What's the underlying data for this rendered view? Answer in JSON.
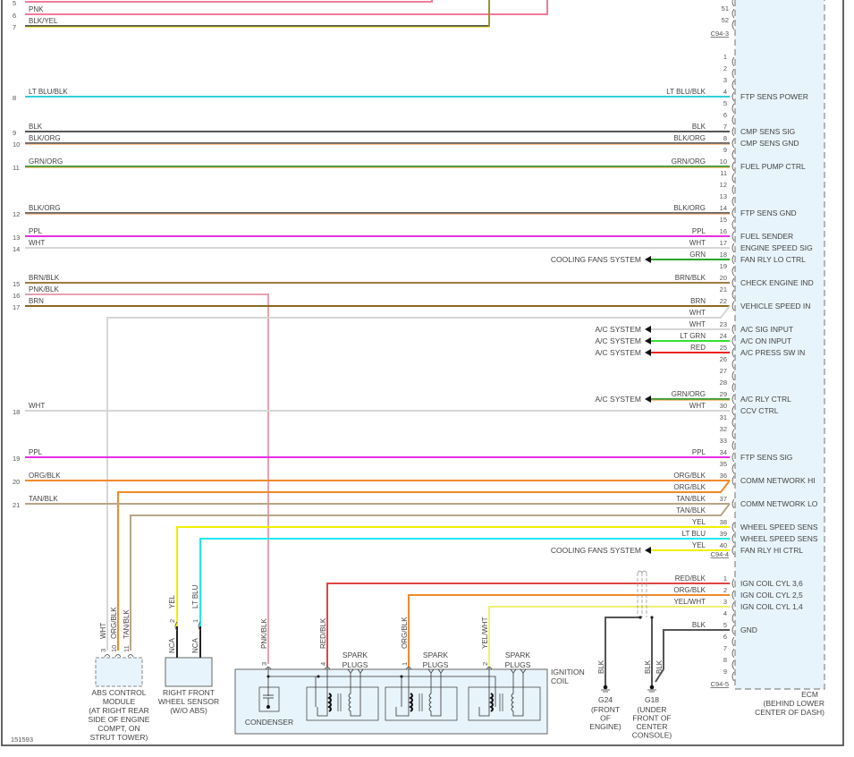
{
  "diagram_id": "151593",
  "wire_colors": {
    "PNK": [
      "#f07b9a",
      null
    ],
    "BLK/YEL": [
      "#555555",
      "#e8e000"
    ],
    "LT BLU/BLK": [
      "#2fd0d8",
      null
    ],
    "BLK": [
      "#555555",
      null
    ],
    "BLK/ORG": [
      "#666666",
      "#f5a060"
    ],
    "GRN/ORG": [
      "#3c9c3c",
      "#f0a040"
    ],
    "PPL": [
      "#e62ee6",
      null
    ],
    "WHT": [
      "#d6d6d6",
      null
    ],
    "GRN": [
      "#2aa52a",
      null
    ],
    "BRN/BLK": [
      "#9c7c3c",
      null
    ],
    "PNK/BLK": [
      "#e8a0b0",
      null
    ],
    "BRN": [
      "#8a6a1f",
      null
    ],
    "LT GRN": [
      "#33e033",
      null
    ],
    "RED": [
      "#ee2222",
      null
    ],
    "ORG/BLK": [
      "#f08a2a",
      null
    ],
    "TAN/BLK": [
      "#b8a588",
      null
    ],
    "YEL": [
      "#f0f000",
      null
    ],
    "LT BLU": [
      "#22e8f0",
      null
    ],
    "RED/BLK": [
      "#e04444",
      null
    ],
    "YEL/WHT": [
      "#f0f070",
      null
    ]
  },
  "top_wires": [
    {
      "circuit": "5",
      "label": "",
      "wire": "PNK"
    },
    {
      "circuit": "6",
      "label": "PNK",
      "wire": "PNK"
    },
    {
      "circuit": "7",
      "label": "BLK/YEL",
      "wire": "BLK/YEL"
    }
  ],
  "c94_3": {
    "name": "C94-3",
    "pins": [
      "51",
      "52"
    ]
  },
  "c94_4": {
    "name": "C94-4",
    "pins": [
      {
        "pin": "1"
      },
      {
        "pin": "2"
      },
      {
        "pin": "3"
      },
      {
        "pin": "4",
        "func": "FTP SENS POWER",
        "wire": "LT BLU/BLK",
        "circuit": "8"
      },
      {
        "pin": "5"
      },
      {
        "pin": "6"
      },
      {
        "pin": "7",
        "func": "CMP SENS SIG",
        "wire": "BLK",
        "circuit": "9"
      },
      {
        "pin": "8",
        "func": "CMP SENS GND",
        "wire": "BLK/ORG",
        "circuit": "10"
      },
      {
        "pin": "9"
      },
      {
        "pin": "10",
        "func": "FUEL PUMP CTRL",
        "wire": "GRN/ORG",
        "circuit": "11"
      },
      {
        "pin": "11"
      },
      {
        "pin": "12"
      },
      {
        "pin": "13"
      },
      {
        "pin": "14",
        "func": "FTP SENS GND",
        "wire": "BLK/ORG",
        "circuit": "12"
      },
      {
        "pin": "15"
      },
      {
        "pin": "16",
        "func": "FUEL SENDER",
        "wire": "PPL",
        "circuit": "13"
      },
      {
        "pin": "17",
        "func": "ENGINE SPEED SIG",
        "wire": "WHT",
        "circuit": "14"
      },
      {
        "pin": "18",
        "func": "FAN RLY LO CTRL",
        "wire": "GRN",
        "dest": "COOLING FANS SYSTEM"
      },
      {
        "pin": "19"
      },
      {
        "pin": "20",
        "func": "CHECK ENGINE IND",
        "wire": "BRN/BLK",
        "circuit": "15"
      },
      {
        "pin": "21",
        "left_only": {
          "circuit": "16",
          "wire": "PNK/BLK",
          "label": "PNK/BLK"
        }
      },
      {
        "pin": "22",
        "func": "VEHICLE SPEED IN",
        "wire": "BRN",
        "circuit": "17",
        "extra": "WHT"
      },
      {
        "pin": "23",
        "func": "A/C SIG INPUT",
        "wire": "WHT",
        "dest": "A/C SYSTEM"
      },
      {
        "pin": "24",
        "func": "A/C ON INPUT",
        "wire": "LT GRN",
        "dest": "A/C SYSTEM"
      },
      {
        "pin": "25",
        "func": "A/C PRESS SW IN",
        "wire": "RED",
        "dest": "A/C SYSTEM"
      },
      {
        "pin": "26"
      },
      {
        "pin": "27"
      },
      {
        "pin": "28"
      },
      {
        "pin": "29",
        "func": "A/C RLY CTRL",
        "wire": "GRN/ORG",
        "dest": "A/C SYSTEM"
      },
      {
        "pin": "30",
        "func": "CCV CTRL",
        "wire": "WHT",
        "circuit": "18"
      },
      {
        "pin": "31"
      },
      {
        "pin": "32"
      },
      {
        "pin": "33"
      },
      {
        "pin": "34",
        "func": "FTP SENS SIG",
        "wire": "PPL",
        "circuit": "19"
      },
      {
        "pin": "35"
      },
      {
        "pin": "36",
        "func": "COMM NETWORK HI",
        "wire": "ORG/BLK",
        "circuit": "20",
        "extra": "ORG/BLK"
      },
      {
        "pin": "37",
        "func": "COMM NETWORK LO",
        "wire": "TAN/BLK",
        "circuit": "21",
        "extra": "TAN/BLK"
      },
      {
        "pin": "38",
        "func": "WHEEL SPEED SENS",
        "wire": "YEL",
        "drop": true
      },
      {
        "pin": "39",
        "func": "WHEEL SPEED SENS",
        "wire": "LT BLU",
        "drop": true
      },
      {
        "pin": "40",
        "func": "FAN RLY HI CTRL",
        "wire": "YEL",
        "dest": "COOLING FANS SYSTEM"
      }
    ]
  },
  "c94_5": {
    "name": "C94-5",
    "pins": [
      {
        "pin": "1",
        "func": "IGN COIL CYL 3,6",
        "wire": "RED/BLK"
      },
      {
        "pin": "2",
        "func": "IGN COIL CYL 2,5",
        "wire": "ORG/BLK"
      },
      {
        "pin": "3",
        "func": "IGN COIL CYL 1,4",
        "wire": "YEL/WHT"
      },
      {
        "pin": "4"
      },
      {
        "pin": "5",
        "func": "GND",
        "wire": "BLK"
      },
      {
        "pin": "6"
      },
      {
        "pin": "7"
      },
      {
        "pin": "8"
      },
      {
        "pin": "9"
      }
    ]
  },
  "ecm": {
    "label": "ECM",
    "location": [
      "(BEHIND LOWER",
      "CENTER OF DASH)"
    ]
  },
  "abs_module": {
    "pins": [
      {
        "pin": "3",
        "wire": "WHT"
      },
      {
        "pin": "10",
        "wire": "ORG/BLK"
      },
      {
        "pin": "11",
        "wire": "TAN/BLK"
      }
    ],
    "label": [
      "ABS CONTROL",
      "MODULE",
      "(AT RIGHT REAR",
      "SIDE OF ENGINE",
      "COMPT, ON",
      "STRUT TOWER)"
    ]
  },
  "wheel_sensor": {
    "pins": [
      {
        "pin": "2",
        "wire": "YEL",
        "term": "NCA"
      },
      {
        "pin": "1",
        "wire": "LT BLU",
        "term": "NCA"
      }
    ],
    "label": [
      "RIGHT FRONT",
      "WHEEL SENSOR",
      "(W/O ABS)"
    ]
  },
  "ignition_coil": {
    "label": [
      "IGNITION",
      "COIL"
    ],
    "pins": [
      {
        "pin": "3",
        "wire": "PNK/BLK"
      },
      {
        "pin": "4",
        "wire": "RED/BLK"
      },
      {
        "pin": "1",
        "wire": "ORG/BLK"
      },
      {
        "pin": "2",
        "wire": "YEL/WHT"
      }
    ],
    "spark_plugs": [
      "SPARK",
      "PLUGS"
    ],
    "condenser": "CONDENSER"
  },
  "grounds": [
    {
      "id": "G24",
      "wire": "BLK",
      "label": [
        "(FRONT",
        "OF",
        "ENGINE)"
      ]
    },
    {
      "id": "G18",
      "wire": "BLK",
      "label": [
        "(UNDER",
        "FRONT OF",
        "CENTER",
        "CONSOLE)"
      ]
    }
  ]
}
